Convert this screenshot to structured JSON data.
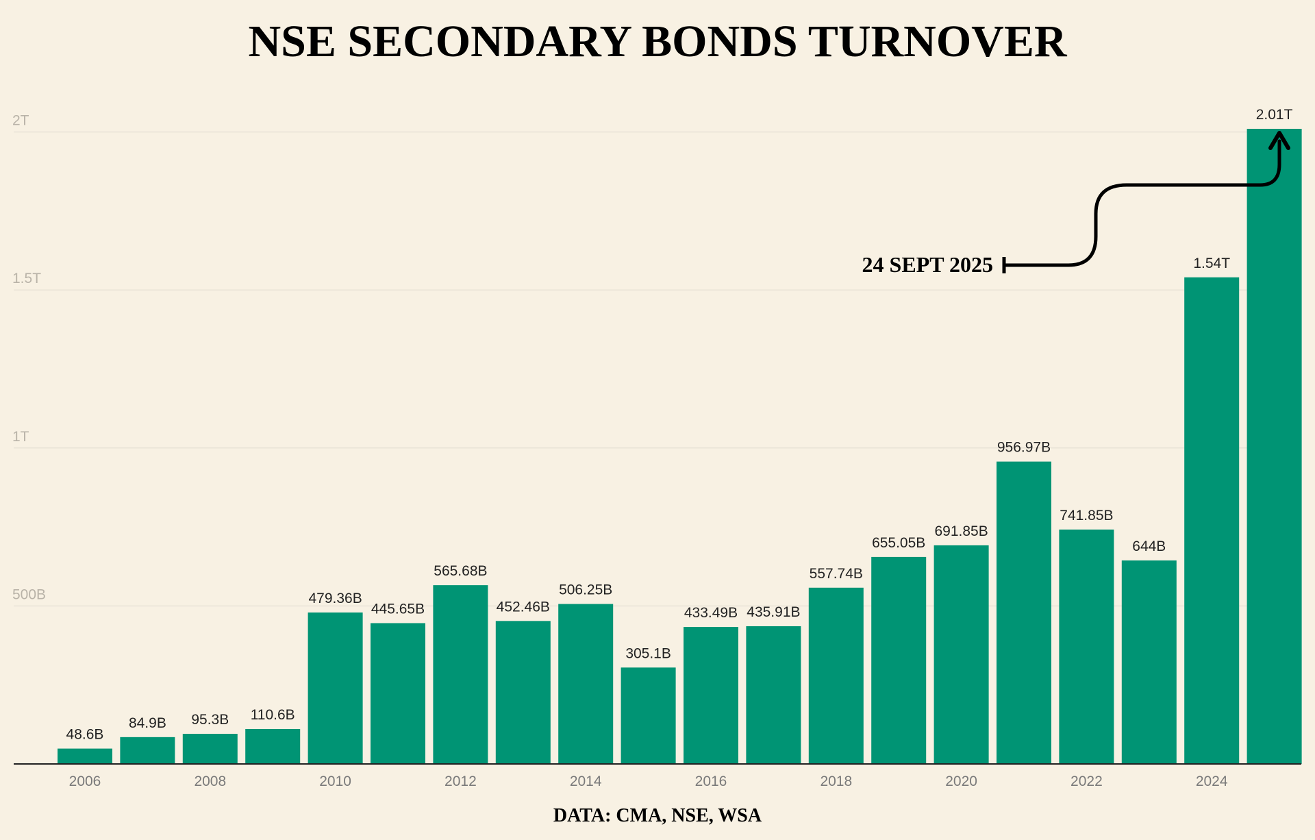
{
  "chart_data": {
    "type": "bar",
    "title": "NSE SECONDARY BONDS TURNOVER",
    "source": "DATA: CMA, NSE, WSA",
    "categories": [
      "2006",
      "2007",
      "2008",
      "2009",
      "2010",
      "2011",
      "2012",
      "2013",
      "2014",
      "2015",
      "2016",
      "2017",
      "2018",
      "2019",
      "2020",
      "2021",
      "2022",
      "2023",
      "2024",
      "2025"
    ],
    "values": [
      48.6,
      84.9,
      95.3,
      110.6,
      479.36,
      445.65,
      565.68,
      452.46,
      506.25,
      305.1,
      433.49,
      435.91,
      557.74,
      655.05,
      691.85,
      956.97,
      741.85,
      644,
      1540,
      2010
    ],
    "value_units": "billions",
    "data_labels": [
      "48.6B",
      "84.9B",
      "95.3B",
      "110.6B",
      "479.36B",
      "445.65B",
      "565.68B",
      "452.46B",
      "506.25B",
      "305.1B",
      "433.49B",
      "435.91B",
      "557.74B",
      "655.05B",
      "691.85B",
      "956.97B",
      "741.85B",
      "644B",
      "1.54T",
      "2.01T"
    ],
    "x_tick_labels": [
      "2006",
      "2008",
      "2010",
      "2012",
      "2014",
      "2016",
      "2018",
      "2020",
      "2022",
      "2024"
    ],
    "y_ticks": [
      500,
      1000,
      1500,
      2000
    ],
    "y_tick_labels": [
      "500B",
      "1T",
      "1.5T",
      "2T"
    ],
    "ylim": [
      0,
      2010
    ],
    "xlabel": "",
    "ylabel": "",
    "grid": true,
    "legend": "none",
    "bar_color": "#009474",
    "annotations": [
      {
        "text": "24 SEPT 2025",
        "points_to": "2025"
      }
    ]
  }
}
